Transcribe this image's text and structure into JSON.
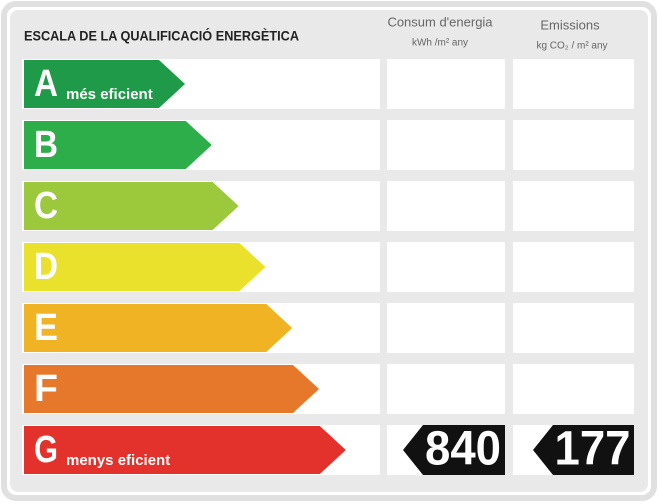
{
  "title": "ESCALA DE LA QUALIFICACIÓ ENERGÈTICA",
  "columns": {
    "consumption": {
      "title": "Consum d'energia",
      "unit": "kWh /m² any"
    },
    "emissions": {
      "title": "Emissions",
      "unit": "kg CO₂ / m² any"
    }
  },
  "rows": [
    {
      "letter": "A",
      "label": "més eficient",
      "color": "#1f9a48"
    },
    {
      "letter": "B",
      "color": "#2eae4a"
    },
    {
      "letter": "C",
      "color": "#9cc83c"
    },
    {
      "letter": "D",
      "color": "#e9e12b"
    },
    {
      "letter": "E",
      "color": "#efb324"
    },
    {
      "letter": "F",
      "color": "#e6782b"
    },
    {
      "letter": "G",
      "label": "menys eficient",
      "color": "#e2322b",
      "consumption": 840,
      "emissions": 177
    }
  ]
}
